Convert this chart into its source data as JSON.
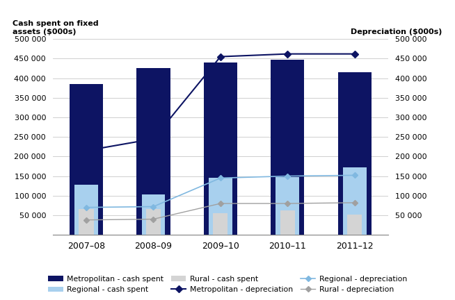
{
  "years": [
    "2007–08",
    "2008–09",
    "2009–10",
    "2010–11",
    "2011–12"
  ],
  "metro_cash": [
    385000,
    425000,
    440000,
    448000,
    415000
  ],
  "regional_cash": [
    128000,
    103000,
    145000,
    148000,
    172000
  ],
  "rural_cash": [
    65000,
    66000,
    55000,
    63000,
    52000
  ],
  "metro_depr": [
    215000,
    245000,
    455000,
    462000,
    462000
  ],
  "regional_depr": [
    70000,
    72000,
    145000,
    150000,
    152000
  ],
  "rural_depr": [
    38000,
    40000,
    80000,
    80000,
    82000
  ],
  "metro_bar_color": "#0d1463",
  "regional_bar_color": "#a8d0ee",
  "rural_bar_color": "#d4d4d4",
  "metro_line_color": "#0d1463",
  "regional_line_color": "#80b8e0",
  "rural_line_color": "#a0a0a0",
  "left_ylabel": "Cash spent on fixed\nassets ($000s)",
  "right_ylabel": "Depreciation ($000s)",
  "ylim": [
    0,
    500000
  ],
  "ytick_labels": [
    "50 000",
    "100 000",
    "150 000",
    "200 000",
    "250 000",
    "300 000",
    "350 000",
    "400 000",
    "450 000",
    "500 000"
  ],
  "ytick_vals": [
    50000,
    100000,
    150000,
    200000,
    250000,
    300000,
    350000,
    400000,
    450000,
    500000
  ],
  "legend_items": [
    "Metropolitan - cash spent",
    "Regional - cash spent",
    "Rural - cash spent",
    "Metropolitan - depreciation",
    "Regional - depreciation",
    "Rural - depreciation"
  ],
  "bg_color": "#ffffff",
  "grid_color": "#c8c8c8"
}
